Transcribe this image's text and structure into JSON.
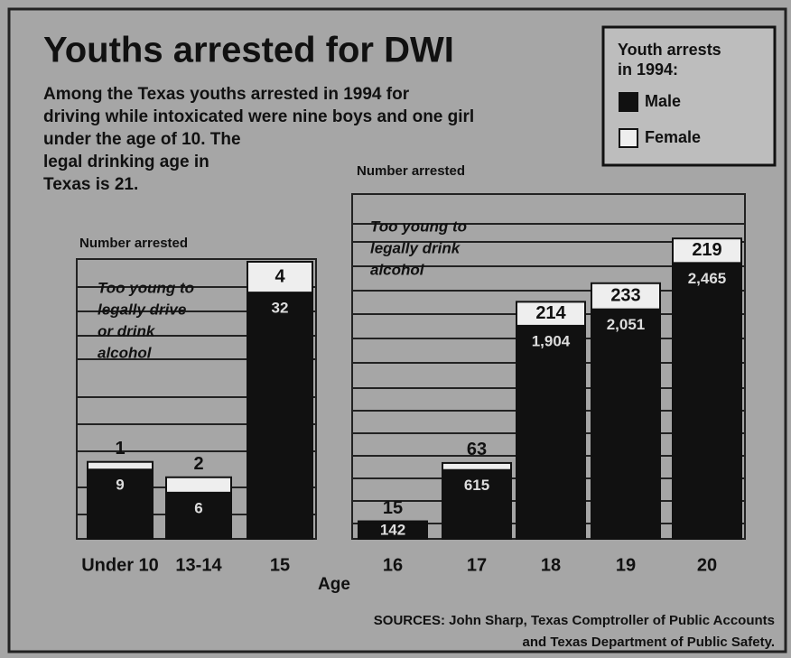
{
  "title": "Youths arrested for DWI",
  "subtitle": [
    "Among the Texas youths arrested in 1994 for",
    "driving while intoxicated were nine boys and one girl",
    "under the age of 10. The",
    "legal drinking age in",
    "Texas is 21."
  ],
  "legend_title": [
    "Youth arrests",
    "in 1994:"
  ],
  "xlabel": "Age",
  "source": [
    "SOURCES: John Sharp, Texas Comptroller of Public Accounts",
    "and Texas Department of Public Safety."
  ],
  "chart_data": [
    {
      "type": "bar",
      "stacked": true,
      "ylabel": "Number arrested",
      "annotation": [
        "Too young to",
        "legally drive",
        "or drink",
        "alcohol"
      ],
      "categories": [
        "Under 10",
        "13-14",
        "15"
      ],
      "series": [
        {
          "name": "Male",
          "color": "#111111",
          "values": [
            9,
            6,
            32
          ]
        },
        {
          "name": "Female",
          "color": "#eeeeee",
          "values": [
            1,
            2,
            4
          ]
        }
      ],
      "ylim": [
        0,
        36
      ]
    },
    {
      "type": "bar",
      "stacked": true,
      "ylabel": "Number arrested",
      "annotation": [
        "Too young to",
        "legally drink",
        "alcohol"
      ],
      "categories": [
        "16",
        "17",
        "18",
        "19",
        "20"
      ],
      "series": [
        {
          "color": "#111111",
          "values": [
            142,
            615,
            1904,
            2051,
            2465
          ],
          "value_labels": [
            "142",
            "615",
            "1,904",
            "2,051",
            "2,465"
          ]
        },
        {
          "color": "#eeeeee",
          "values": [
            15,
            63,
            214,
            233,
            219
          ]
        }
      ],
      "ylim": [
        0,
        3000
      ]
    }
  ]
}
